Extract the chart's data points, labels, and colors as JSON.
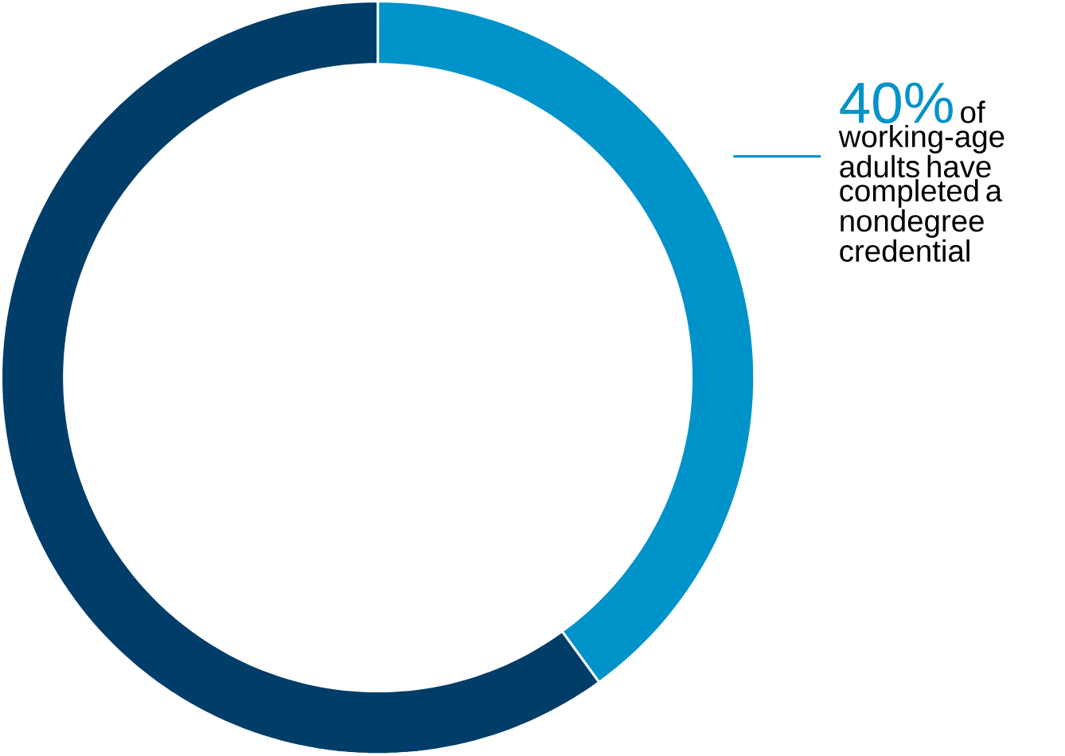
{
  "chart_data": {
    "type": "donut",
    "categories": [
      null,
      null
    ],
    "values": [
      40,
      60
    ],
    "colors": [
      "#0093c9",
      "#003d68"
    ],
    "value_labels": [
      "40%",
      null
    ],
    "annotations": [
      "of working-age adults have completed a nondegree credential"
    ]
  }
}
